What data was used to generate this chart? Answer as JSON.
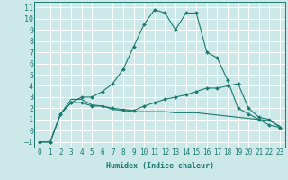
{
  "xlabel": "Humidex (Indice chaleur)",
  "background_color": "#cce8e8",
  "grid_color": "#ffffff",
  "line_color": "#1a7a6e",
  "xlim": [
    -0.5,
    23.5
  ],
  "ylim": [
    -1.5,
    11.5
  ],
  "xticks": [
    0,
    1,
    2,
    3,
    4,
    5,
    6,
    7,
    8,
    9,
    10,
    11,
    12,
    13,
    14,
    15,
    16,
    17,
    18,
    19,
    20,
    21,
    22,
    23
  ],
  "yticks": [
    -1,
    0,
    1,
    2,
    3,
    4,
    5,
    6,
    7,
    8,
    9,
    10,
    11
  ],
  "curve1_x": [
    0,
    1,
    2,
    3,
    4,
    5,
    6,
    7,
    8,
    9,
    10,
    11,
    12,
    13,
    14,
    15,
    16,
    17,
    18,
    19,
    20,
    21,
    22,
    23
  ],
  "curve1_y": [
    -1,
    -1,
    1.5,
    2.5,
    3.0,
    3.0,
    3.5,
    4.2,
    5.5,
    7.5,
    9.5,
    10.8,
    10.5,
    9.0,
    10.5,
    10.5,
    7.0,
    6.5,
    4.5,
    2.0,
    1.5,
    1.0,
    0.5,
    0.3
  ],
  "curve2_x": [
    0,
    1,
    2,
    3,
    4,
    5,
    6,
    7,
    8,
    9,
    10,
    11,
    12,
    13,
    14,
    15,
    16,
    17,
    18,
    19,
    20,
    21,
    22,
    23
  ],
  "curve2_y": [
    -1,
    -1,
    1.5,
    2.5,
    2.5,
    2.2,
    2.2,
    2.0,
    1.9,
    1.8,
    2.2,
    2.5,
    2.8,
    3.0,
    3.2,
    3.5,
    3.8,
    3.8,
    4.0,
    4.2,
    2.0,
    1.2,
    1.0,
    0.3
  ],
  "curve3_x": [
    0,
    1,
    2,
    3,
    4,
    5,
    6,
    7,
    8,
    9,
    10,
    11,
    12,
    13,
    14,
    15,
    16,
    17,
    18,
    19,
    20,
    21,
    22,
    23
  ],
  "curve3_y": [
    -1,
    -1,
    1.5,
    2.8,
    2.8,
    2.3,
    2.2,
    1.9,
    1.8,
    1.7,
    1.7,
    1.7,
    1.7,
    1.6,
    1.6,
    1.6,
    1.5,
    1.4,
    1.3,
    1.2,
    1.1,
    1.0,
    0.9,
    0.4
  ]
}
